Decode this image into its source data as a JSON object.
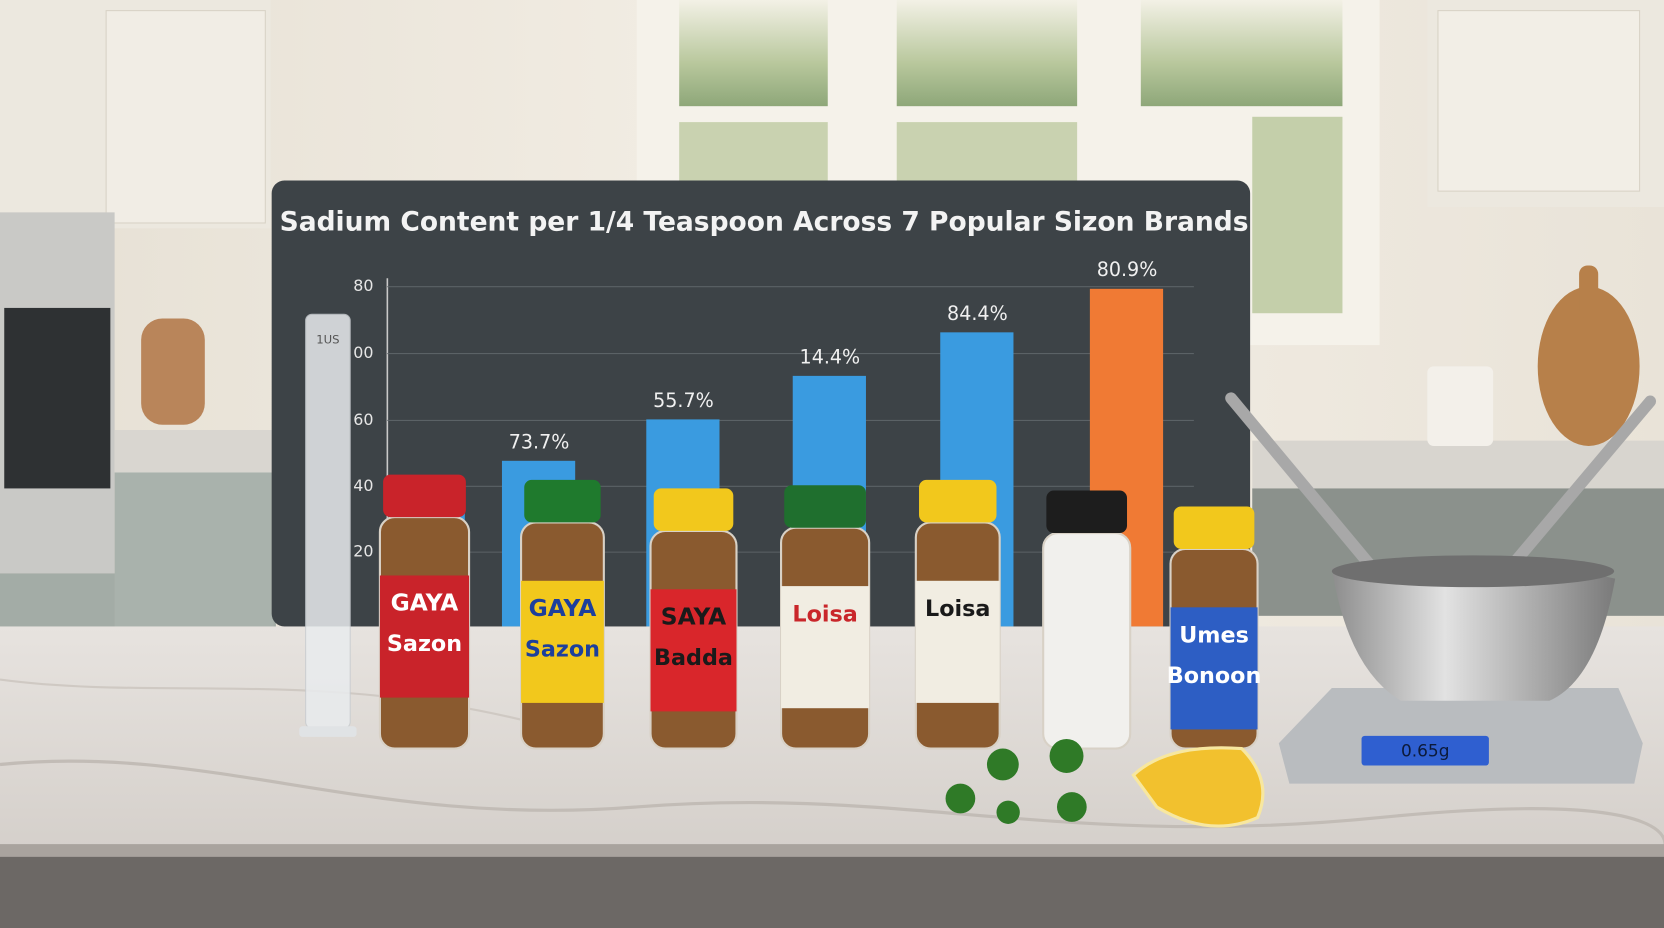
{
  "board": {
    "title": "Sadium Content per 1/4 Teaspoon Across 7 Popular Sizon Brands",
    "axis_labels": [
      "80",
      "00",
      "60",
      "40",
      "20"
    ],
    "bar_labels": [
      "73.7%",
      "55.7%",
      "14.4%",
      "84.4%",
      "80.9%"
    ]
  },
  "jars": [
    {
      "lines": [
        "GAYA",
        "Sazon"
      ]
    },
    {
      "lines": [
        "GAYA",
        "Sazon"
      ]
    },
    {
      "lines": [
        "SAYA",
        "Badda"
      ]
    },
    {
      "lines": [
        "Loisa"
      ]
    },
    {
      "lines": [
        "Loisa"
      ]
    },
    {
      "lines": []
    },
    {
      "lines": [
        "Umes",
        "Bonoon"
      ]
    }
  ],
  "cylinder": {
    "label": "1US"
  },
  "scale": {
    "display": "0.65g"
  }
}
